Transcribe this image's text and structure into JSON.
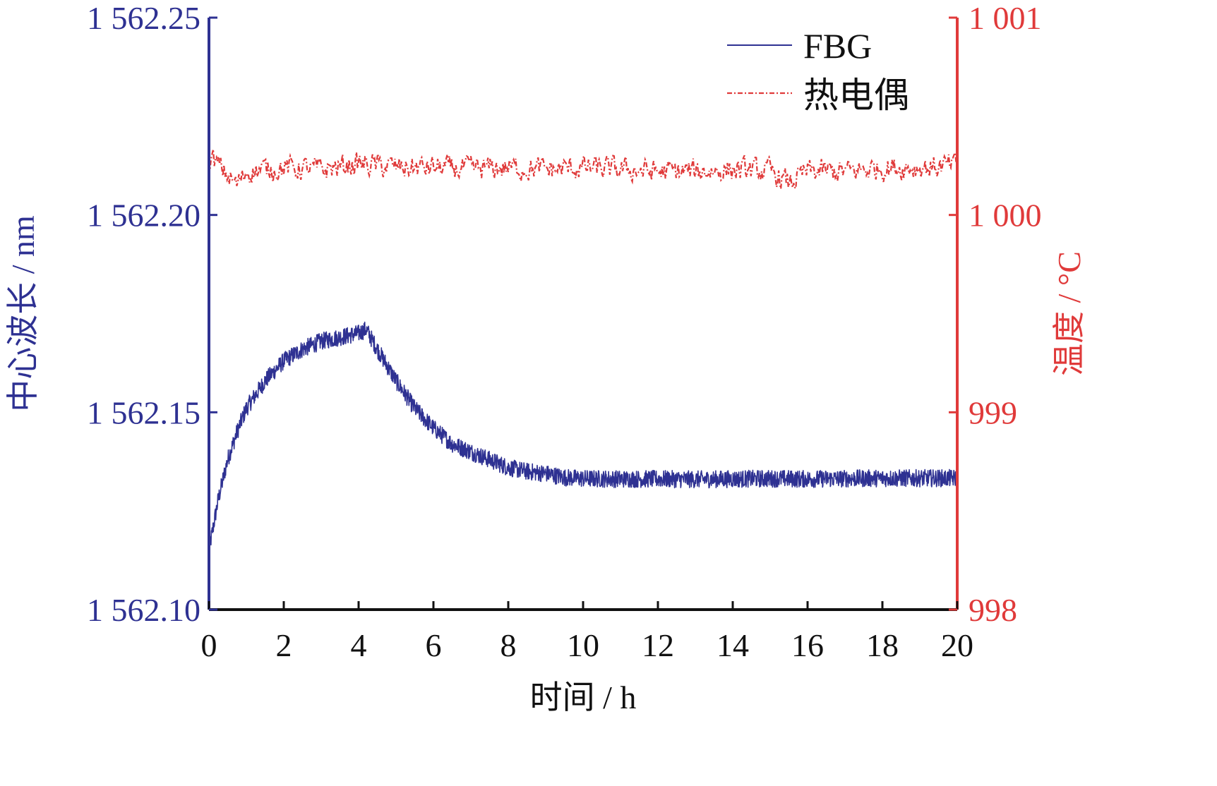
{
  "colors": {
    "fbg": "#2E3192",
    "thermocouple": "#E03A3A",
    "axis_x": "#111111",
    "background": "#ffffff"
  },
  "chart_data": {
    "type": "line",
    "xlabel": "时间 / h",
    "ylabel_left": "中心波长 / nm",
    "ylabel_right": "温度 / °C",
    "xlim": [
      0,
      20
    ],
    "ylim_left": [
      1562.1,
      1562.25
    ],
    "ylim_right": [
      998,
      1001
    ],
    "x_ticks": [
      "0",
      "2",
      "4",
      "6",
      "8",
      "10",
      "12",
      "14",
      "16",
      "18",
      "20"
    ],
    "y_left_ticks": [
      "1 562.10",
      "1 562.15",
      "1 562.20",
      "1 562.25"
    ],
    "y_right_ticks": [
      "998",
      "999",
      "1 000",
      "1 001"
    ],
    "grid": false,
    "legend_position": "top-right",
    "series": [
      {
        "name": "FBG",
        "axis": "left",
        "style": "solid",
        "x": [
          0,
          0.25,
          0.5,
          0.75,
          1.0,
          1.5,
          2.0,
          2.5,
          3.0,
          3.5,
          4.0,
          4.2,
          4.5,
          5.0,
          5.5,
          6.0,
          6.5,
          7.0,
          7.5,
          8.0,
          8.5,
          9.0,
          9.5,
          10,
          11,
          12,
          13,
          14,
          15,
          16,
          17,
          18,
          19,
          20
        ],
        "values": [
          1562.115,
          1562.128,
          1562.138,
          1562.145,
          1562.151,
          1562.158,
          1562.163,
          1562.166,
          1562.168,
          1562.169,
          1562.17,
          1562.171,
          1562.166,
          1562.158,
          1562.151,
          1562.146,
          1562.142,
          1562.14,
          1562.138,
          1562.136,
          1562.135,
          1562.1345,
          1562.1335,
          1562.1332,
          1562.1331,
          1562.1331,
          1562.133,
          1562.1331,
          1562.1332,
          1562.1331,
          1562.1332,
          1562.1333,
          1562.1333,
          1562.1333
        ],
        "noise_amplitude": 0.0022
      },
      {
        "name": "热电偶",
        "axis": "right",
        "style": "dash-dot",
        "x": [
          0,
          0.25,
          0.5,
          0.75,
          1.0,
          2,
          3,
          4,
          5,
          6,
          7,
          8,
          9,
          10,
          11,
          12,
          13,
          14,
          15,
          15.5,
          16,
          17,
          18,
          19,
          20
        ],
        "values": [
          1000.3,
          1000.25,
          1000.2,
          1000.15,
          1000.22,
          1000.24,
          1000.23,
          1000.26,
          1000.24,
          1000.24,
          1000.23,
          1000.24,
          1000.23,
          1000.24,
          1000.23,
          1000.22,
          1000.22,
          1000.23,
          1000.22,
          1000.16,
          1000.22,
          1000.22,
          1000.24,
          1000.24,
          1000.25
        ],
        "noise_amplitude": 0.05
      }
    ]
  }
}
